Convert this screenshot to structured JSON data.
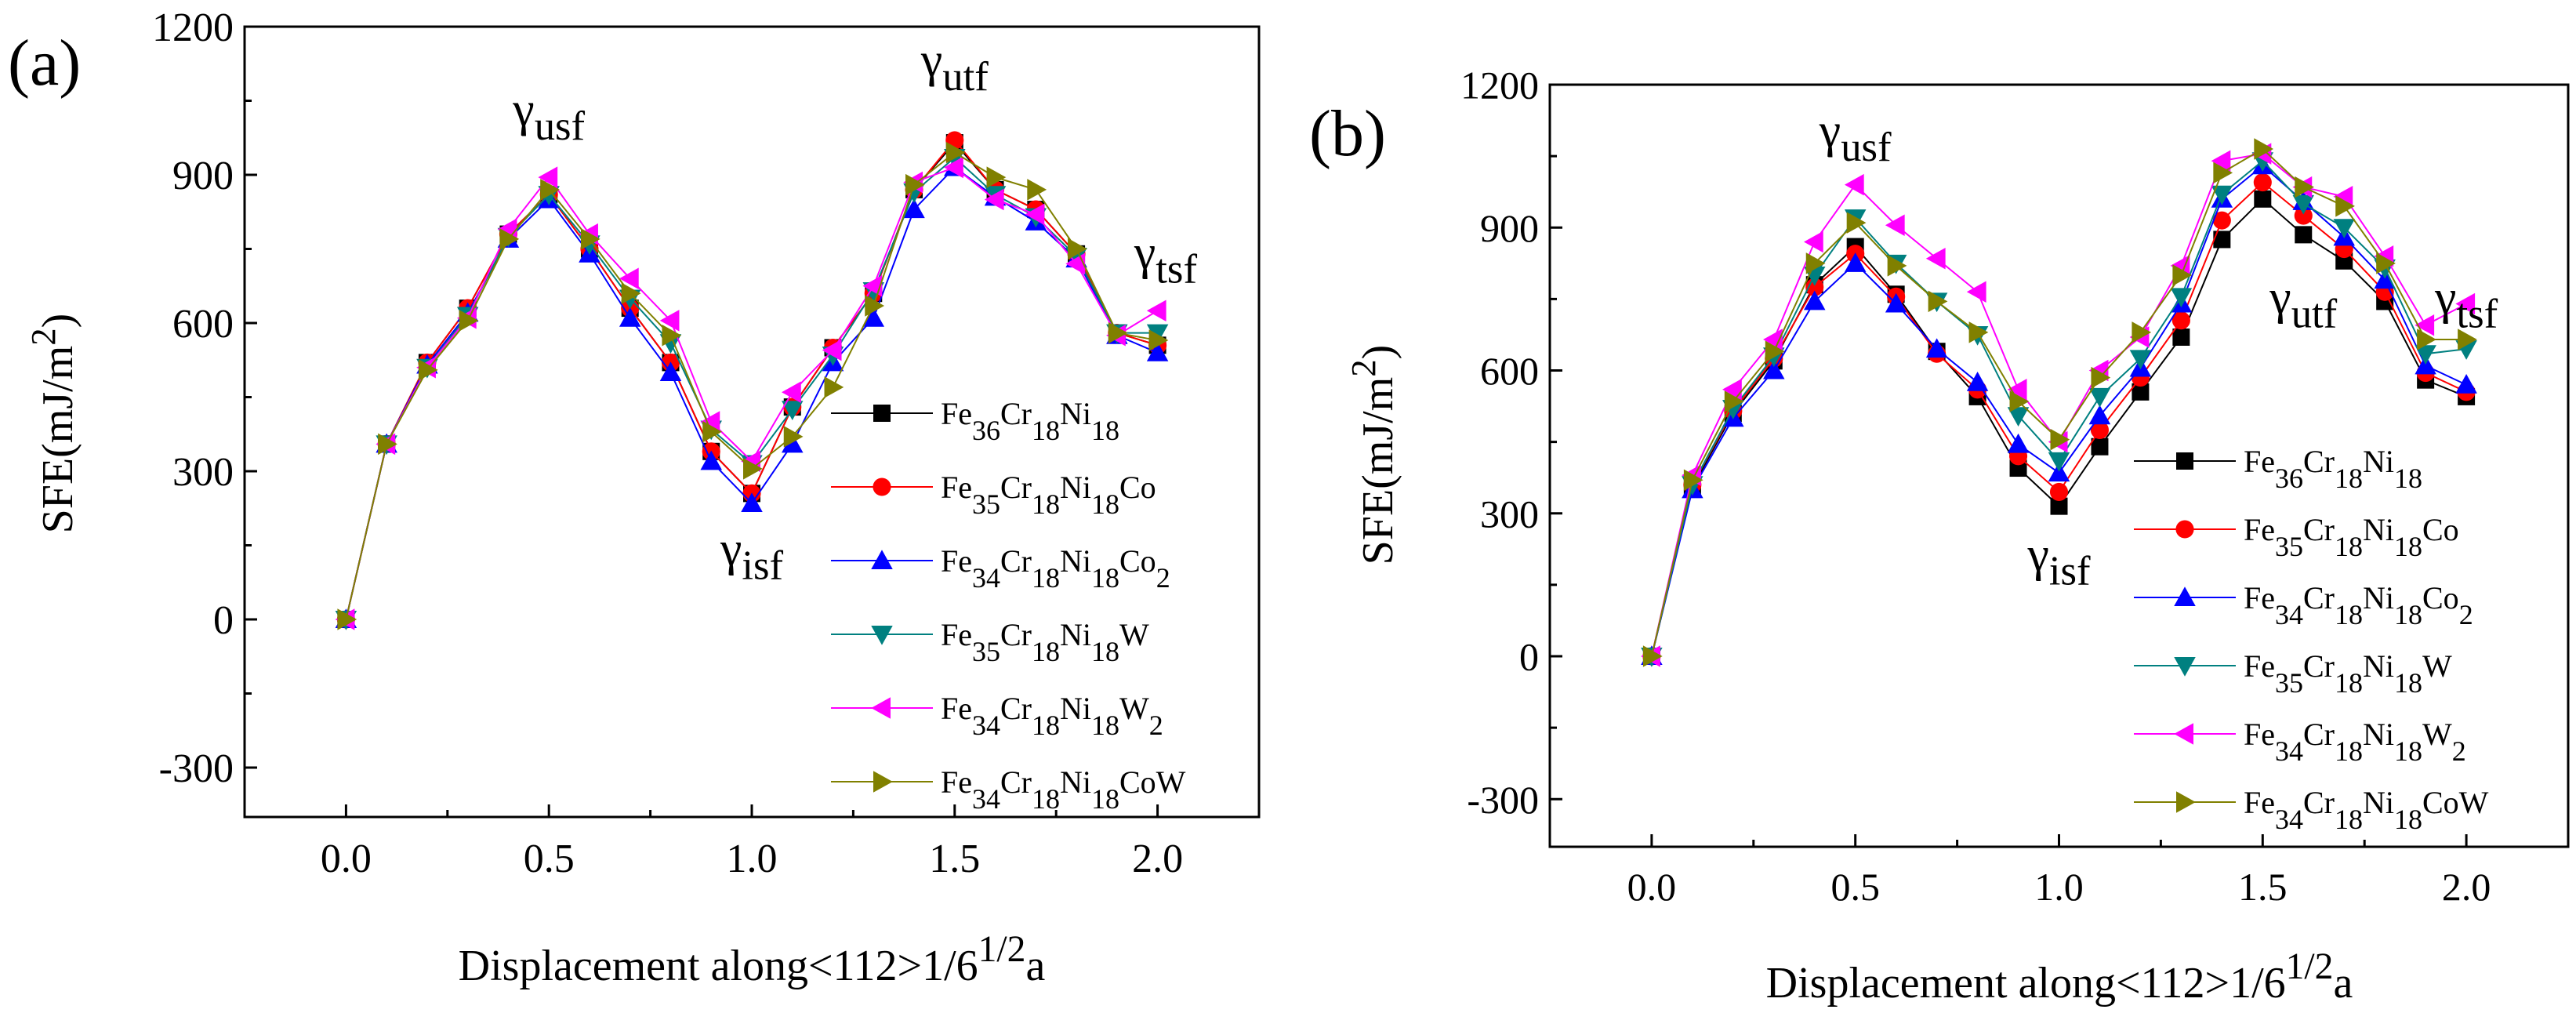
{
  "chart_data": [
    {
      "panel_label": "(a)",
      "type": "line",
      "xlabel": "Displacement along<112>1/6",
      "xlabel_sup": "1/2",
      "xlabel_suffix": "a",
      "ylabel": "SFE(mJ/m",
      "ylabel_sup": "2",
      "ylabel_suffix": ")",
      "xlim": [
        -0.25,
        2.25
      ],
      "ylim": [
        -400,
        1200
      ],
      "xticks": [
        "0.0",
        "0.5",
        "1.0",
        "1.5",
        "2.0"
      ],
      "yticks": [
        "-300",
        "0",
        "300",
        "600",
        "900",
        "1200"
      ],
      "annotations": [
        {
          "base": "γ",
          "sub": "usf",
          "x": 0.5,
          "y": 1000
        },
        {
          "base": "γ",
          "sub": "utf",
          "x": 1.5,
          "y": 1100
        },
        {
          "base": "γ",
          "sub": "isf",
          "x": 1.0,
          "y": 110
        },
        {
          "base": "γ",
          "sub": "tsf",
          "x": 2.02,
          "y": 710
        }
      ],
      "x": [
        0,
        0.1,
        0.2,
        0.3,
        0.4,
        0.5,
        0.6,
        0.7,
        0.8,
        0.9,
        1.0,
        1.1,
        1.2,
        1.3,
        1.4,
        1.5,
        1.6,
        1.7,
        1.8,
        1.9,
        2.0
      ],
      "series": [
        {
          "name": "Fe36Cr18Ni18",
          "values": [
            0,
            355,
            520,
            630,
            780,
            860,
            750,
            630,
            520,
            340,
            255,
            430,
            550,
            660,
            870,
            965,
            870,
            830,
            740,
            580,
            555
          ]
        },
        {
          "name": "Fe35Cr18Ni18Co",
          "values": [
            0,
            355,
            520,
            630,
            780,
            860,
            750,
            630,
            520,
            340,
            255,
            430,
            550,
            660,
            870,
            970,
            870,
            830,
            740,
            580,
            555
          ]
        },
        {
          "name": "Fe34Cr18Ni18Co2",
          "values": [
            0,
            355,
            515,
            620,
            770,
            850,
            740,
            610,
            500,
            320,
            235,
            355,
            520,
            610,
            830,
            915,
            855,
            805,
            730,
            575,
            540
          ]
        },
        {
          "name": "Fe35Cr18Ni18W",
          "values": [
            0,
            355,
            510,
            615,
            775,
            860,
            760,
            650,
            560,
            385,
            315,
            425,
            535,
            665,
            865,
            935,
            860,
            815,
            735,
            580,
            580
          ]
        },
        {
          "name": "Fe34Cr18Ni18W2",
          "values": [
            0,
            355,
            510,
            610,
            790,
            895,
            780,
            690,
            605,
            400,
            320,
            460,
            545,
            675,
            885,
            915,
            850,
            820,
            720,
            575,
            625
          ]
        },
        {
          "name": "Fe34Cr18Ni18CoW",
          "values": [
            0,
            355,
            505,
            605,
            770,
            870,
            770,
            660,
            575,
            380,
            305,
            370,
            470,
            635,
            880,
            945,
            895,
            870,
            750,
            580,
            565
          ]
        }
      ]
    },
    {
      "panel_label": "(b)",
      "type": "line",
      "xlabel": "Displacement along<112>1/6",
      "xlabel_sup": "1/2",
      "xlabel_suffix": "a",
      "ylabel": "SFE(mJ/m",
      "ylabel_sup": "2",
      "ylabel_suffix": ")",
      "xlim": [
        -0.25,
        2.25
      ],
      "ylim": [
        -400,
        1200
      ],
      "xticks": [
        "0.0",
        "0.5",
        "1.0",
        "1.5",
        "2.0"
      ],
      "yticks": [
        "-300",
        "0",
        "300",
        "600",
        "900",
        "1200"
      ],
      "annotations": [
        {
          "base": "γ",
          "sub": "usf",
          "x": 0.5,
          "y": 1070
        },
        {
          "base": "γ",
          "sub": "utf",
          "x": 1.6,
          "y": 720
        },
        {
          "base": "γ",
          "sub": "isf",
          "x": 1.0,
          "y": 180
        },
        {
          "base": "γ",
          "sub": "tsf",
          "x": 2.0,
          "y": 720
        }
      ],
      "x": [
        0,
        0.1,
        0.2,
        0.3,
        0.4,
        0.5,
        0.6,
        0.7,
        0.8,
        0.9,
        1.0,
        1.1,
        1.2,
        1.3,
        1.4,
        1.5,
        1.6,
        1.7,
        1.8,
        1.9,
        2.0
      ],
      "series": [
        {
          "name": "Fe36Cr18Ni18",
          "values": [
            0,
            355,
            510,
            620,
            780,
            860,
            760,
            640,
            545,
            395,
            315,
            440,
            555,
            670,
            875,
            960,
            885,
            830,
            745,
            580,
            545
          ]
        },
        {
          "name": "Fe35Cr18Ni18Co",
          "values": [
            0,
            360,
            515,
            625,
            775,
            845,
            755,
            635,
            560,
            420,
            345,
            475,
            585,
            705,
            915,
            995,
            925,
            855,
            765,
            595,
            555
          ]
        },
        {
          "name": "Fe34Cr18Ni18Co2",
          "values": [
            0,
            350,
            500,
            600,
            745,
            825,
            740,
            645,
            575,
            445,
            385,
            505,
            605,
            740,
            960,
            1030,
            955,
            880,
            790,
            610,
            570
          ]
        },
        {
          "name": "Fe35Cr18Ni18W",
          "values": [
            0,
            360,
            520,
            630,
            800,
            920,
            825,
            745,
            675,
            505,
            410,
            545,
            625,
            755,
            970,
            1040,
            950,
            900,
            815,
            635,
            645
          ]
        },
        {
          "name": "Fe34Cr18Ni18W2",
          "values": [
            0,
            380,
            560,
            665,
            870,
            990,
            905,
            835,
            765,
            560,
            450,
            600,
            670,
            820,
            1040,
            1055,
            985,
            965,
            840,
            695,
            740
          ]
        },
        {
          "name": "Fe34Cr18Ni18CoW",
          "values": [
            0,
            370,
            535,
            640,
            825,
            910,
            820,
            745,
            680,
            535,
            455,
            585,
            680,
            800,
            1015,
            1065,
            985,
            945,
            825,
            665,
            665
          ]
        }
      ]
    }
  ],
  "legend": [
    {
      "key": "Fe36Cr18Ni18",
      "parts": [
        [
          "Fe",
          ""
        ],
        [
          "36",
          "sub"
        ],
        [
          "Cr",
          ""
        ],
        [
          "18",
          "sub"
        ],
        [
          "Ni",
          ""
        ],
        [
          "18",
          "sub"
        ]
      ],
      "color": "#000000",
      "marker": "square"
    },
    {
      "key": "Fe35Cr18Ni18Co",
      "parts": [
        [
          "Fe",
          ""
        ],
        [
          "35",
          "sub"
        ],
        [
          "Cr",
          ""
        ],
        [
          "18",
          "sub"
        ],
        [
          "Ni",
          ""
        ],
        [
          "18",
          "sub"
        ],
        [
          "Co",
          ""
        ]
      ],
      "color": "#ff0000",
      "marker": "circle"
    },
    {
      "key": "Fe34Cr18Ni18Co2",
      "parts": [
        [
          "Fe",
          ""
        ],
        [
          "34",
          "sub"
        ],
        [
          "Cr",
          ""
        ],
        [
          "18",
          "sub"
        ],
        [
          "Ni",
          ""
        ],
        [
          "18",
          "sub"
        ],
        [
          "Co",
          ""
        ],
        [
          "2",
          "sub"
        ]
      ],
      "color": "#0000ff",
      "marker": "triangle-up"
    },
    {
      "key": "Fe35Cr18Ni18W",
      "parts": [
        [
          "Fe",
          ""
        ],
        [
          "35",
          "sub"
        ],
        [
          "Cr",
          ""
        ],
        [
          "18",
          "sub"
        ],
        [
          "Ni",
          ""
        ],
        [
          "18",
          "sub"
        ],
        [
          "W",
          ""
        ]
      ],
      "color": "#008080",
      "marker": "triangle-down"
    },
    {
      "key": "Fe34Cr18Ni18W2",
      "parts": [
        [
          "Fe",
          ""
        ],
        [
          "34",
          "sub"
        ],
        [
          "Cr",
          ""
        ],
        [
          "18",
          "sub"
        ],
        [
          "Ni",
          ""
        ],
        [
          "18",
          "sub"
        ],
        [
          "W",
          ""
        ],
        [
          "2",
          "sub"
        ]
      ],
      "color": "#ff00ff",
      "marker": "triangle-left"
    },
    {
      "key": "Fe34Cr18Ni18CoW",
      "parts": [
        [
          "Fe",
          ""
        ],
        [
          "34",
          "sub"
        ],
        [
          "Cr",
          ""
        ],
        [
          "18",
          "sub"
        ],
        [
          "Ni",
          ""
        ],
        [
          "18",
          "sub"
        ],
        [
          "CoW",
          ""
        ]
      ],
      "color": "#808000",
      "marker": "triangle-right"
    }
  ]
}
